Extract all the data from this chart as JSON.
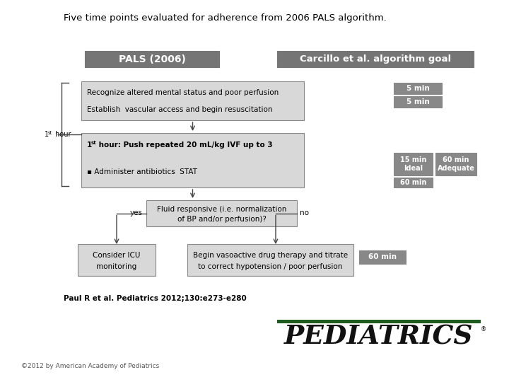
{
  "title": "Five time points evaluated for adherence from 2006 PALS algorithm.",
  "title_fontsize": 9.5,
  "header_pals_text": "PALS (2006)",
  "header_carcillo_text": "Carcillo et al. algorithm goal",
  "header_bg": "#757575",
  "header_text_color": "#ffffff",
  "box_bg_light": "#d8d8d8",
  "box_bg_dark": "#888888",
  "box_border": "#888888",
  "text_color": "#000000",
  "arrow_color": "#444444",
  "box1_line1": "Recognize altered mental status and poor perfusion",
  "box1_line2": "Establish  vascular access and begin resuscitation",
  "box2_line1": " hour: Push repeated 20 mL/kg IVF up to 3",
  "box2_line2": "▪ Administer antibiotics  STAT",
  "box3_line1": "Fluid responsive (i.e. normalization",
  "box3_line2": "of BP and/or perfusion)?",
  "box4_line1": "Consider ICU",
  "box4_line2": "monitoring",
  "box5_line1": "Begin vasoactive drug therapy and titrate",
  "box5_line2": "to correct hypotension / poor perfusion",
  "time_5min_1": "5 min",
  "time_5min_2": "5 min",
  "time_15min": "15 min\nIdeal",
  "time_60min_adequate": "60 min\nAdequate",
  "time_60min_ab": "60 min",
  "time_60min_vaso": "60 min",
  "label_yes": "yes",
  "label_no": "no",
  "citation": "Paul R et al. Pediatrics 2012;130:e273-e280",
  "copyright": "©2012 by American Academy of Pediatrics",
  "pediatrics_text": "PEDIATRICS",
  "pediatrics_color": "#111111",
  "pediatrics_bar_color": "#1e5c1e",
  "bg_color": "#ffffff"
}
